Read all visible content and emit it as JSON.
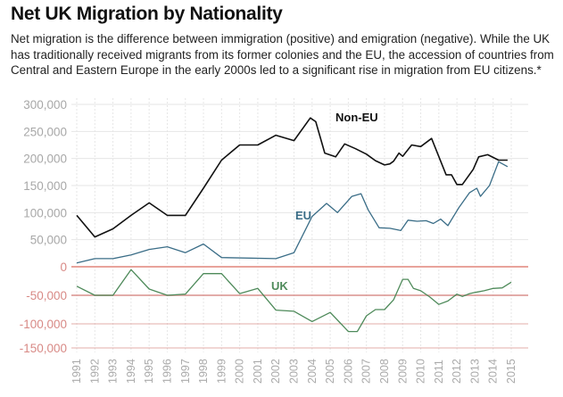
{
  "header": {
    "title": "Net UK Migration by Nationality",
    "subtitle": "Net migration is the difference between immigration (positive) and emigration (negative). While the UK has traditionally received migrants from its former colonies and the EU, the accession of countries from Central and Eastern Europe in the early 2000s led to a significant rise in migration from EU citizens.*"
  },
  "chart_data": {
    "type": "line",
    "title": "Net UK Migration by Nationality",
    "xlabel": "",
    "ylabel": "",
    "xlim": [
      1991,
      2015
    ],
    "ylim": [
      -150000,
      300000
    ],
    "grid": true,
    "y_ticks": [
      {
        "value": 300000,
        "label": "300,000"
      },
      {
        "value": 250000,
        "label": "250,000"
      },
      {
        "value": 200000,
        "label": "200,000"
      },
      {
        "value": 150000,
        "label": "150,000"
      },
      {
        "value": 100000,
        "label": "100,000"
      },
      {
        "value": 50000,
        "label": "50,000"
      },
      {
        "value": 0,
        "label": "0"
      },
      {
        "value": -50000,
        "label": "-50,000"
      },
      {
        "value": -100000,
        "label": "-100,000"
      },
      {
        "value": -150000,
        "label": "-150,000"
      }
    ],
    "x_ticks": [
      "1991",
      "1992",
      "1993",
      "1994",
      "1995",
      "1996",
      "1997",
      "1998",
      "1999",
      "2000",
      "2001",
      "2002",
      "2003",
      "2004",
      "2005",
      "2006",
      "2007",
      "2008",
      "2009",
      "2010",
      "2011",
      "2012",
      "2013",
      "2014",
      "2015"
    ],
    "colors": {
      "non_eu": "#111111",
      "eu": "#3a6d87",
      "uk": "#4e8a5a",
      "positive_tick": "#a8a8a8",
      "negative_tick": "#d88a86",
      "zero_line": "#e8a39b",
      "grid": "#e6e6e6"
    },
    "series": [
      {
        "name": "Non-EU",
        "label": "Non-EU",
        "x": [
          1991,
          1992,
          1993,
          1994,
          1995,
          1996,
          1997,
          1998,
          1999,
          2000,
          2001,
          2002,
          2003,
          2003.9,
          2004.2,
          2004.7,
          2005.3,
          2005.8,
          2006.4,
          2007,
          2007.5,
          2008,
          2008.3,
          2008.5,
          2008.8,
          2009,
          2009.5,
          2010,
          2010.6,
          2011.4,
          2011.7,
          2012,
          2012.3,
          2012.9,
          2013.2,
          2013.7,
          2014.3,
          2014.8
        ],
        "values": [
          95000,
          55000,
          70000,
          95000,
          118000,
          95000,
          95000,
          145000,
          197000,
          225000,
          225000,
          243000,
          233000,
          275000,
          268000,
          210000,
          203000,
          227000,
          218000,
          208000,
          196000,
          188000,
          190000,
          195000,
          210000,
          204000,
          225000,
          222000,
          237000,
          170000,
          170000,
          152000,
          152000,
          180000,
          203000,
          207000,
          197000,
          197000
        ]
      },
      {
        "name": "EU",
        "label": "EU",
        "x": [
          1991,
          1992,
          1993,
          1994,
          1995,
          1996,
          1997,
          1998,
          1999,
          2002,
          2003,
          2004,
          2004.8,
          2005.4,
          2006.2,
          2006.7,
          2007.1,
          2007.7,
          2008.3,
          2008.9,
          2009.3,
          2009.8,
          2010.3,
          2010.7,
          2011.1,
          2011.5,
          2012.1,
          2012.7,
          2013.1,
          2013.3,
          2013.8,
          2014.3,
          2014.8
        ],
        "values": [
          7000,
          15000,
          15000,
          22000,
          32000,
          37000,
          26000,
          42000,
          17000,
          15000,
          26000,
          93000,
          117000,
          100000,
          130000,
          135000,
          105000,
          72000,
          71000,
          67000,
          86000,
          84000,
          85000,
          80000,
          88000,
          76000,
          109000,
          137000,
          145000,
          130000,
          150000,
          194000,
          185000
        ]
      },
      {
        "name": "UK",
        "label": "UK",
        "x": [
          1991,
          1992,
          1993,
          1994,
          1995,
          1996,
          1997,
          1998,
          1999,
          2000,
          2001,
          2002,
          2003,
          2004,
          2005,
          2006,
          2006.5,
          2007,
          2007.5,
          2008,
          2008.5,
          2009,
          2009.3,
          2009.6,
          2010,
          2010.5,
          2011,
          2011.5,
          2012,
          2012.3,
          2012.7,
          2013,
          2013.5,
          2014,
          2014.5,
          2015
        ],
        "values": [
          -34000,
          -50000,
          -50000,
          -5000,
          -39000,
          -50000,
          -48000,
          -12000,
          -12000,
          -47000,
          -38000,
          -76000,
          -78000,
          -96000,
          -80000,
          -116000,
          -116000,
          -86000,
          -75000,
          -75000,
          -58000,
          -22000,
          -22000,
          -38000,
          -42000,
          -53000,
          -66000,
          -60000,
          -48000,
          -52000,
          -47000,
          -45000,
          -42000,
          -38000,
          -37000,
          -27000
        ]
      }
    ]
  }
}
